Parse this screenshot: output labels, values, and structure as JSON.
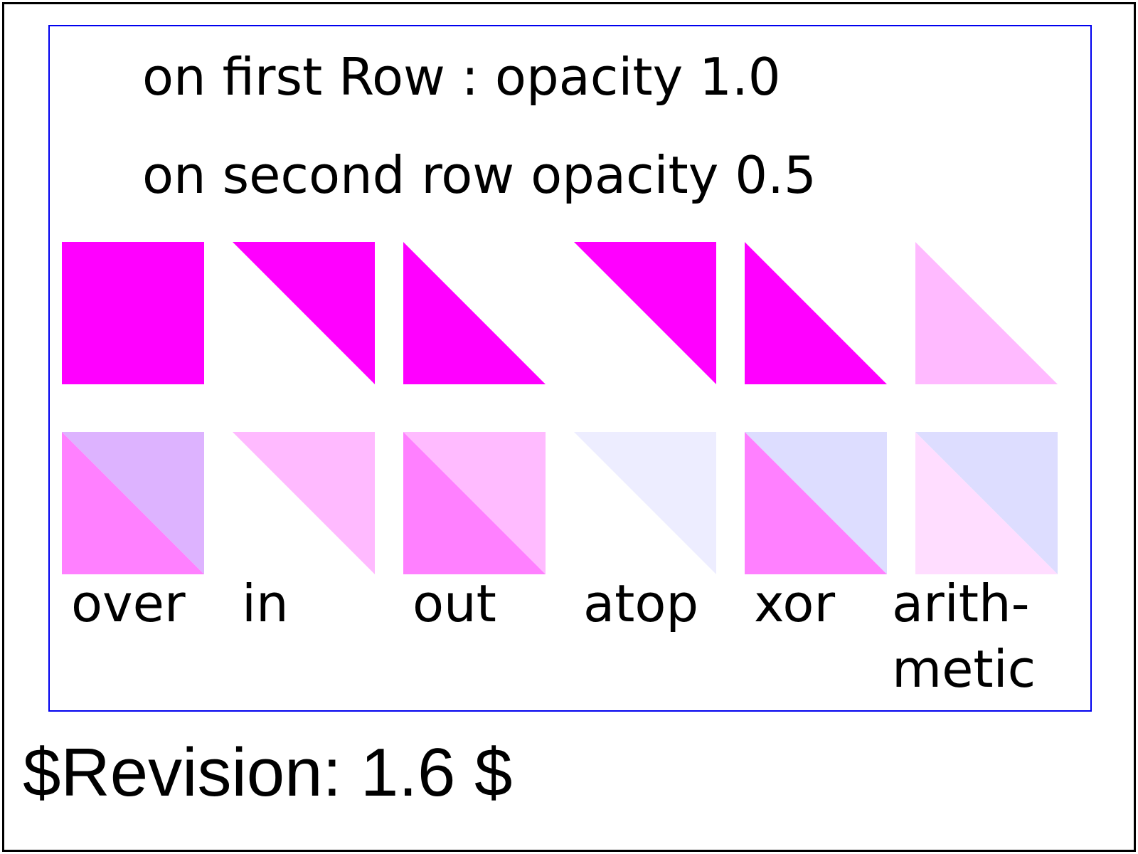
{
  "description": {
    "line1": "on first Row : opacity 1.0",
    "line2": "on second row opacity 0.5"
  },
  "colors": {
    "source": "#ff00ff",
    "destination": "#bbbbff",
    "outer_border": "#000000",
    "inner_border": "#0000ee"
  },
  "row_opacities": [
    1.0,
    0.5
  ],
  "operators": [
    {
      "id": "over",
      "label": "over"
    },
    {
      "id": "in",
      "label": "in"
    },
    {
      "id": "out",
      "label": "out"
    },
    {
      "id": "atop",
      "label": "atop"
    },
    {
      "id": "xor",
      "label": "xor"
    },
    {
      "id": "arithmetic",
      "label_line1": "arith-",
      "label_line2": "metic"
    }
  ],
  "revision": "$Revision: 1.6 $"
}
